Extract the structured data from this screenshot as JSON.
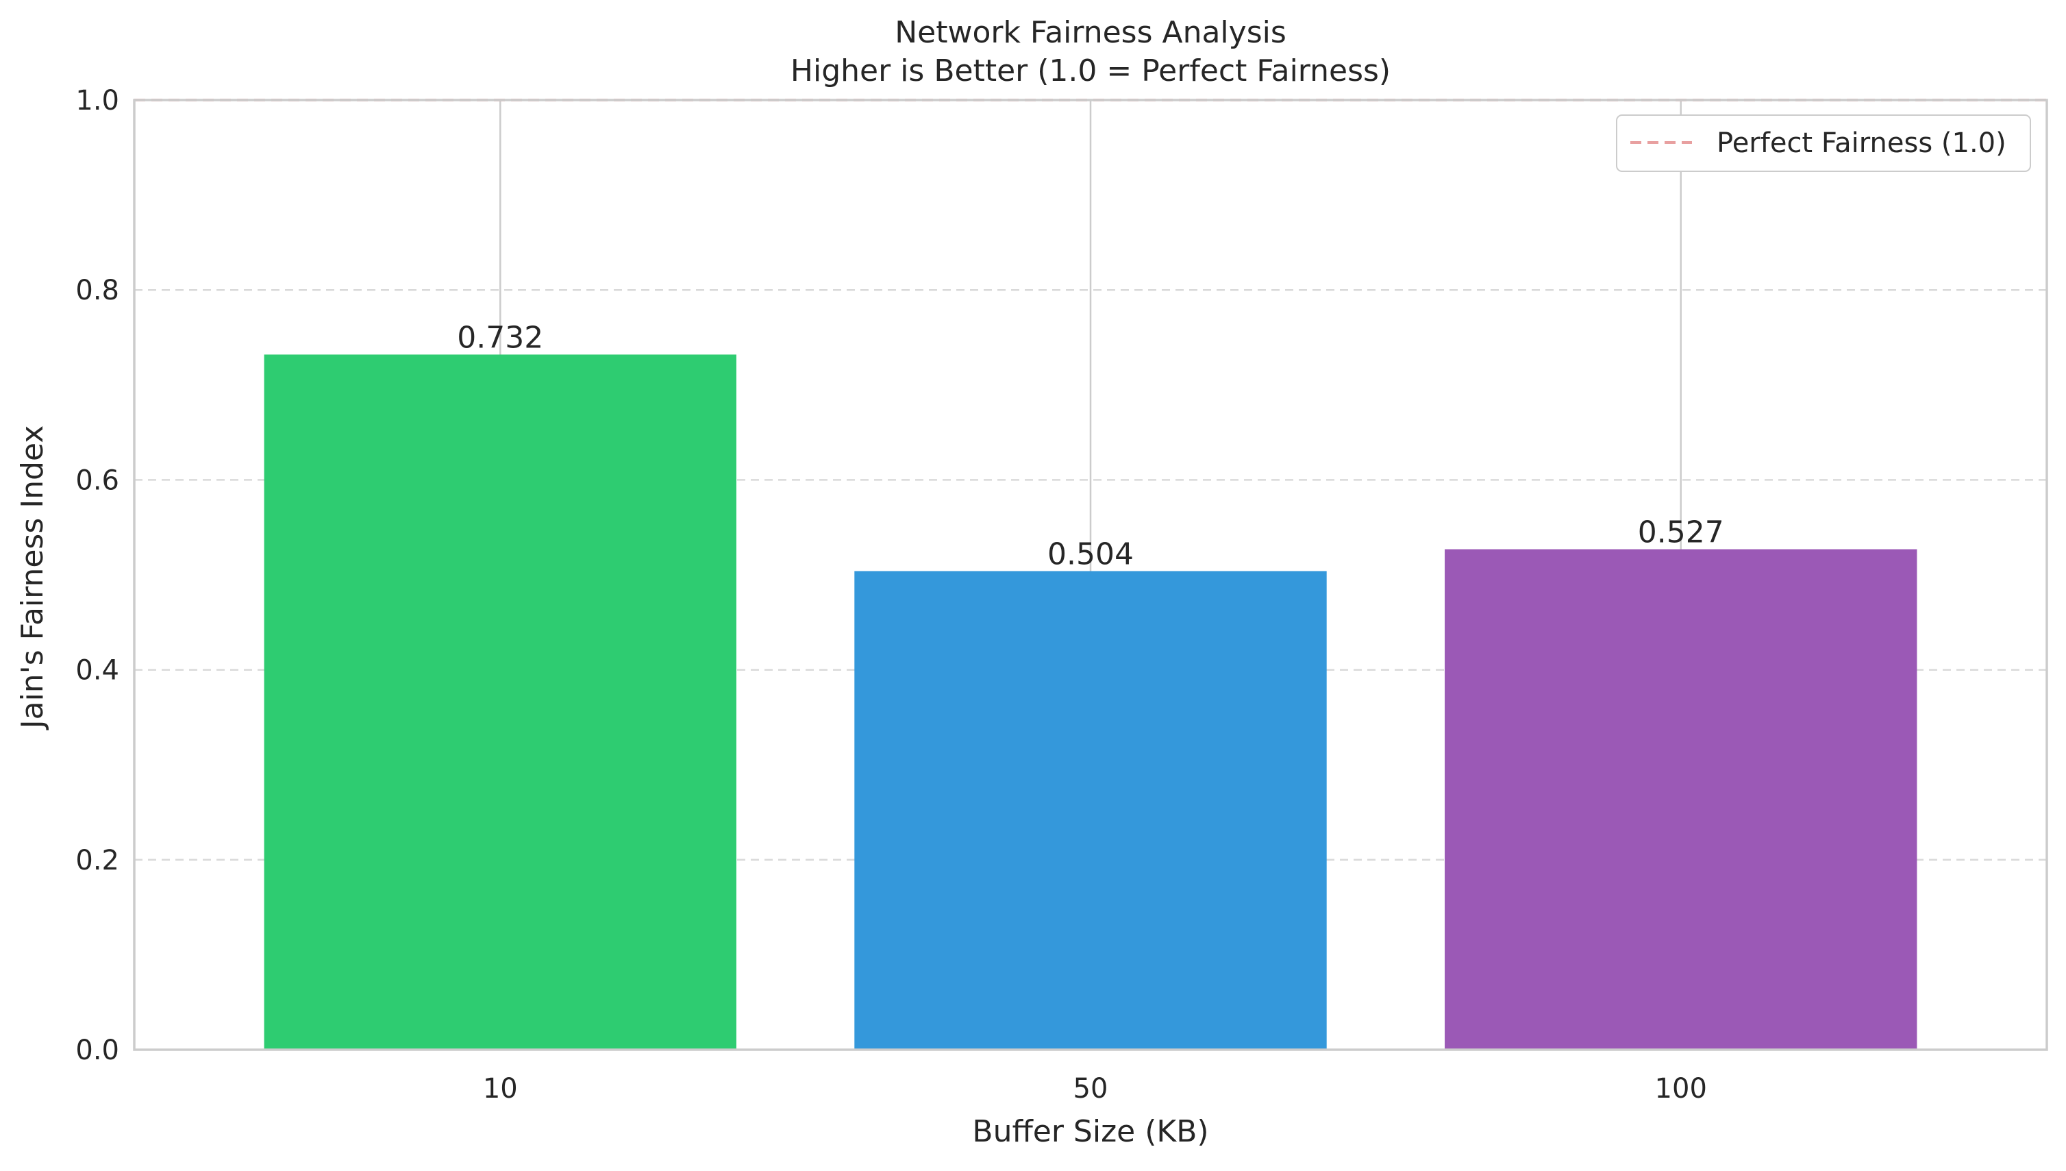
{
  "chart_data": {
    "type": "bar",
    "title": "Network Fairness Analysis",
    "subtitle": "Higher is Better (1.0 = Perfect Fairness)",
    "xlabel": "Buffer Size (KB)",
    "ylabel": "Jain's Fairness Index",
    "categories": [
      "10",
      "50",
      "100"
    ],
    "values": [
      0.732,
      0.504,
      0.527
    ],
    "value_labels": [
      "0.732",
      "0.504",
      "0.527"
    ],
    "bar_colors": [
      "#2ecc71",
      "#3498db",
      "#9b59b6"
    ],
    "ylim": [
      0,
      1.0
    ],
    "yticks": [
      0.0,
      0.2,
      0.4,
      0.6,
      0.8,
      1.0
    ],
    "ytick_labels": [
      "0.0",
      "0.2",
      "0.4",
      "0.6",
      "0.8",
      "1.0"
    ],
    "reference_line": {
      "value": 1.0,
      "label": "Perfect Fairness (1.0)",
      "color": "#e8a0a0",
      "style": "dashed"
    },
    "grid": {
      "y": true,
      "y_style": "dashed",
      "x": true,
      "x_style": "solid"
    },
    "legend_position": "top-right"
  }
}
